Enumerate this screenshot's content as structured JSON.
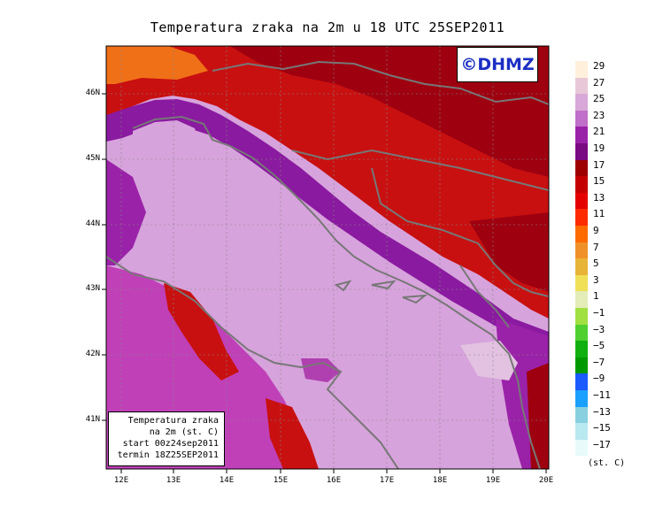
{
  "title": "Temperatura zraka na 2m u 18 UTC 25SEP2011",
  "logo": "©DHMZ",
  "info": {
    "line1": "Temperatura zraka",
    "line2": "na 2m (st. C)",
    "line3": "start 00z24sep2011",
    "line4": "termin 18Z25SEP2011"
  },
  "axes": {
    "x_ticks": [
      "12E",
      "13E",
      "14E",
      "15E",
      "16E",
      "17E",
      "18E",
      "19E",
      "20E"
    ],
    "y_ticks": [
      "46N",
      "45N",
      "44N",
      "43N",
      "42N",
      "41N"
    ]
  },
  "colorbar": {
    "unit": "(st. C)",
    "labels": [
      "29",
      "27",
      "25",
      "23",
      "21",
      "19",
      "17",
      "15",
      "13",
      "11",
      "9",
      "7",
      "5",
      "3",
      "1",
      "−1",
      "−3",
      "−5",
      "−7",
      "−9",
      "−11",
      "−13",
      "−15",
      "−17"
    ],
    "colors": [
      "#fff0dc",
      "#e8c8d8",
      "#d8a8d8",
      "#c070c8",
      "#9a22a8",
      "#7a0a82",
      "#9e0000",
      "#c40000",
      "#e40000",
      "#ff2a00",
      "#ff6a00",
      "#f09028",
      "#e8b438",
      "#f0e058",
      "#e4ecb8",
      "#a0e040",
      "#50d030",
      "#10b010",
      "#009a00",
      "#1a5aff",
      "#1aa0ff",
      "#88d0e0",
      "#b8e8f0",
      "#e8fafa"
    ]
  },
  "colors": {
    "sea": "#d7a3dc",
    "land_warm": "#c81010",
    "land_hot": "#9e0010",
    "coast_warm": "#8a1aa0",
    "boundary": "#777777"
  }
}
